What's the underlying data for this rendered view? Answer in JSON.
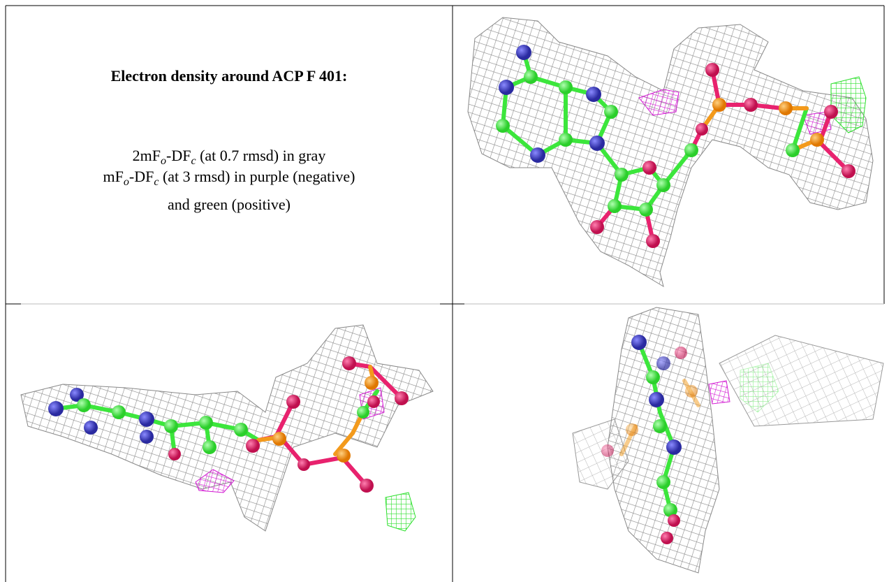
{
  "caption": {
    "title": "Electron density around ACP F 401:",
    "lines": [
      [
        "2mF",
        "o",
        "-DF",
        "c",
        " (at 0.7 rmsd) in gray"
      ],
      [
        "mF",
        "o",
        "-DF",
        "c",
        " (at 3 rmsd) in purple (negative)"
      ],
      [
        "and green (positive)"
      ]
    ]
  }
}
